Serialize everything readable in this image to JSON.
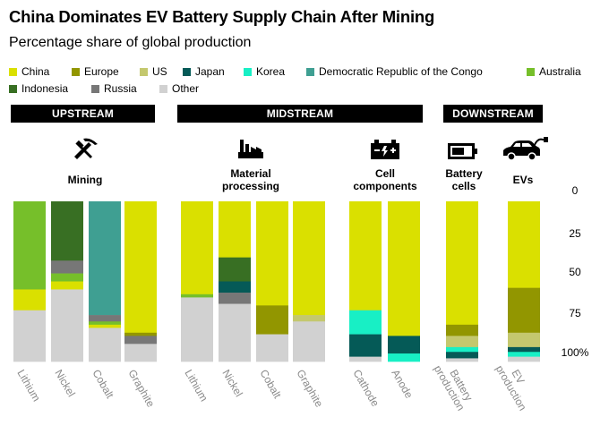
{
  "chart_data": {
    "type": "bar",
    "stacked": true,
    "title": "China Dominates EV Battery Supply Chain After Mining",
    "subtitle": "Percentage share of global production",
    "y_axis": {
      "range": [
        0,
        100
      ],
      "direction": "top-down",
      "ticks": [
        "0",
        "25",
        "50",
        "75",
        "100%"
      ]
    },
    "countries": [
      {
        "name": "China",
        "color": "#dae000"
      },
      {
        "name": "Europe",
        "color": "#929600"
      },
      {
        "name": "US",
        "color": "#c4c86e"
      },
      {
        "name": "Japan",
        "color": "#055a57"
      },
      {
        "name": "Korea",
        "color": "#18efc5"
      },
      {
        "name": "Democratic Republic of the Congo",
        "color": "#3f9f92"
      },
      {
        "name": "Australia",
        "color": "#76bf2a"
      },
      {
        "name": "Indonesia",
        "color": "#386f23"
      },
      {
        "name": "Russia",
        "color": "#777777"
      },
      {
        "name": "Other",
        "color": "#d1d1d1"
      }
    ],
    "stages": [
      {
        "name": "UPSTREAM",
        "processes": [
          {
            "label": "Mining",
            "icon": "mining-tools-icon",
            "bars": [
              {
                "label": "Lithium",
                "segments": [
                  [
                    "Australia",
                    55
                  ],
                  [
                    "China",
                    13
                  ],
                  [
                    "Other",
                    32
                  ]
                ]
              },
              {
                "label": "Nickel",
                "segments": [
                  [
                    "Indonesia",
                    37
                  ],
                  [
                    "Russia",
                    8
                  ],
                  [
                    "Australia",
                    5
                  ],
                  [
                    "China",
                    5
                  ],
                  [
                    "Other",
                    45
                  ]
                ]
              },
              {
                "label": "Cobalt",
                "segments": [
                  [
                    "Democratic Republic of the Congo",
                    71
                  ],
                  [
                    "Russia",
                    4
                  ],
                  [
                    "Australia",
                    2
                  ],
                  [
                    "China",
                    2
                  ],
                  [
                    "Other",
                    21
                  ]
                ]
              },
              {
                "label": "Graphite",
                "segments": [
                  [
                    "China",
                    82
                  ],
                  [
                    "Europe",
                    2
                  ],
                  [
                    "Russia",
                    5
                  ],
                  [
                    "Other",
                    11
                  ]
                ]
              }
            ]
          }
        ]
      },
      {
        "name": "MIDSTREAM",
        "processes": [
          {
            "label": "Material processing",
            "icon": "factory-icon",
            "bars": [
              {
                "label": "Lithium",
                "segments": [
                  [
                    "China",
                    58
                  ],
                  [
                    "Australia",
                    2
                  ],
                  [
                    "Other",
                    40
                  ]
                ]
              },
              {
                "label": "Nickel",
                "segments": [
                  [
                    "China",
                    35
                  ],
                  [
                    "Indonesia",
                    15
                  ],
                  [
                    "Japan",
                    7
                  ],
                  [
                    "Russia",
                    7
                  ],
                  [
                    "Other",
                    36
                  ]
                ]
              },
              {
                "label": "Cobalt",
                "segments": [
                  [
                    "China",
                    65
                  ],
                  [
                    "Europe",
                    18
                  ],
                  [
                    "Other",
                    17
                  ]
                ]
              },
              {
                "label": "Graphite",
                "segments": [
                  [
                    "China",
                    71
                  ],
                  [
                    "US",
                    4
                  ],
                  [
                    "Other",
                    25
                  ]
                ]
              }
            ]
          }
        ]
      },
      {
        "name": "MIDSTREAM",
        "processes": [
          {
            "label": "Cell components",
            "icon": "battery-components-icon",
            "bars": [
              {
                "label": "Cathode",
                "segments": [
                  [
                    "China",
                    68
                  ],
                  [
                    "Korea",
                    15
                  ],
                  [
                    "Japan",
                    14
                  ],
                  [
                    "Other",
                    3
                  ]
                ]
              },
              {
                "label": "Anode",
                "segments": [
                  [
                    "China",
                    84
                  ],
                  [
                    "Japan",
                    11
                  ],
                  [
                    "Korea",
                    5
                  ]
                ]
              }
            ]
          }
        ]
      },
      {
        "name": "DOWNSTREAM",
        "processes": [
          {
            "label": "Battery cells",
            "icon": "battery-icon",
            "bars": [
              {
                "label": "Battery production",
                "segments": [
                  [
                    "China",
                    77
                  ],
                  [
                    "Europe",
                    7
                  ],
                  [
                    "US",
                    7
                  ],
                  [
                    "Korea",
                    3
                  ],
                  [
                    "Japan",
                    4
                  ],
                  [
                    "Other",
                    2
                  ]
                ]
              }
            ]
          },
          {
            "label": "EVs",
            "icon": "electric-car-icon",
            "bars": [
              {
                "label": "EV production",
                "segments": [
                  [
                    "China",
                    54
                  ],
                  [
                    "Europe",
                    28
                  ],
                  [
                    "US",
                    9
                  ],
                  [
                    "Japan",
                    3
                  ],
                  [
                    "Korea",
                    3
                  ],
                  [
                    "Other",
                    3
                  ]
                ]
              }
            ]
          }
        ]
      }
    ],
    "band_labels": [
      "UPSTREAM",
      "MIDSTREAM",
      "DOWNSTREAM"
    ],
    "process_labels": [
      "Mining",
      "Material processing",
      "Cell components",
      "Battery cells",
      "EVs"
    ],
    "bar_labels": [
      "Lithium",
      "Nickel",
      "Cobalt",
      "Graphite",
      "Lithium",
      "Nickel",
      "Cobalt",
      "Graphite",
      "Cathode",
      "Anode",
      "Battery production",
      "EV production"
    ]
  }
}
